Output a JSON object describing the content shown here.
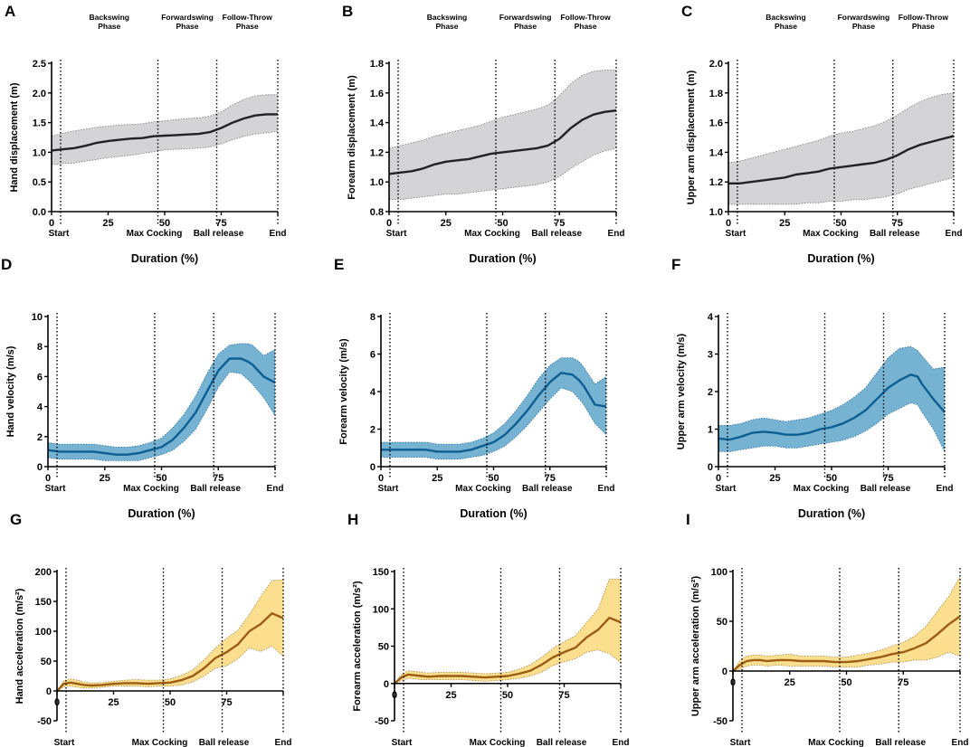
{
  "colors": {
    "gray_band": "#d4d4d6",
    "gray_line": "#222222",
    "blue_band": "#76b3d3",
    "blue_line": "#0d5e91",
    "yellow_band": "#fbdf8f",
    "yellow_line": "#9a5d13"
  },
  "phases": [
    "Backswing Phase",
    "Forwardswing Phase",
    "Follow-Throw Phase"
  ],
  "events": {
    "start": "Start",
    "max_cocking": "Max Cocking",
    "ball_release": "Ball release",
    "end": "End"
  },
  "chart_data": [
    {
      "id": "A",
      "label": "A",
      "type": "line",
      "title": "",
      "ylabel": "Hand displacement (m)",
      "xlabel": "Duration (%)",
      "xlim": [
        0,
        100
      ],
      "ylim": [
        0,
        2.5
      ],
      "xticks": [
        "0",
        "25",
        "50",
        "75",
        "100"
      ],
      "yticks": [
        "0.0",
        "0.5",
        "1.0",
        "1.5",
        "2.0",
        "2.5"
      ],
      "phase_labels": true,
      "event_lines": [
        4,
        47,
        73,
        100
      ],
      "style": "gray",
      "x": [
        0,
        5,
        10,
        15,
        20,
        25,
        30,
        35,
        40,
        45,
        50,
        55,
        60,
        65,
        70,
        75,
        80,
        85,
        90,
        95,
        100
      ],
      "mean": [
        1.03,
        1.05,
        1.07,
        1.11,
        1.16,
        1.19,
        1.21,
        1.23,
        1.24,
        1.27,
        1.28,
        1.29,
        1.3,
        1.31,
        1.34,
        1.41,
        1.5,
        1.57,
        1.62,
        1.64,
        1.64
      ],
      "upper": [
        1.27,
        1.32,
        1.36,
        1.39,
        1.42,
        1.44,
        1.46,
        1.47,
        1.48,
        1.51,
        1.53,
        1.55,
        1.57,
        1.58,
        1.61,
        1.68,
        1.8,
        1.89,
        1.95,
        1.97,
        1.97
      ],
      "lower": [
        0.79,
        0.81,
        0.82,
        0.85,
        0.88,
        0.91,
        0.93,
        0.95,
        0.98,
        1.01,
        1.04,
        1.05,
        1.06,
        1.07,
        1.09,
        1.14,
        1.21,
        1.27,
        1.31,
        1.33,
        1.35
      ]
    },
    {
      "id": "B",
      "label": "B",
      "type": "line",
      "title": "",
      "ylabel": "Forearm displacement (m)",
      "xlabel": "Duration (%)",
      "xlim": [
        0,
        100
      ],
      "ylim": [
        0.8,
        1.9
      ],
      "xticks": [
        "0",
        "25",
        "50",
        "75",
        "100"
      ],
      "yticks": [
        "0.8",
        "1.0",
        "1.2",
        "1.4",
        "1.6",
        "1.8"
      ],
      "phase_labels": true,
      "event_lines": [
        4,
        47,
        73,
        100
      ],
      "style": "gray",
      "x": [
        0,
        5,
        10,
        15,
        20,
        25,
        30,
        35,
        40,
        45,
        50,
        55,
        60,
        65,
        70,
        75,
        80,
        85,
        90,
        95,
        100
      ],
      "mean": [
        1.08,
        1.09,
        1.1,
        1.12,
        1.15,
        1.17,
        1.18,
        1.19,
        1.21,
        1.23,
        1.24,
        1.25,
        1.26,
        1.27,
        1.29,
        1.34,
        1.42,
        1.48,
        1.52,
        1.54,
        1.55
      ],
      "upper": [
        1.27,
        1.29,
        1.31,
        1.33,
        1.36,
        1.38,
        1.4,
        1.42,
        1.44,
        1.47,
        1.5,
        1.52,
        1.54,
        1.56,
        1.59,
        1.66,
        1.75,
        1.81,
        1.84,
        1.85,
        1.85
      ],
      "lower": [
        0.89,
        0.89,
        0.9,
        0.91,
        0.92,
        0.93,
        0.93,
        0.94,
        0.95,
        0.96,
        0.97,
        0.98,
        0.99,
        1.0,
        1.02,
        1.06,
        1.12,
        1.17,
        1.22,
        1.25,
        1.27
      ]
    },
    {
      "id": "C",
      "label": "C",
      "type": "line",
      "title": "",
      "ylabel": "Upper arm displacement (m)",
      "xlabel": "Duration (%)",
      "xlim": [
        0,
        100
      ],
      "ylim": [
        1.0,
        2.0
      ],
      "xticks": [
        "0",
        "25",
        "50",
        "75",
        "100"
      ],
      "yticks": [
        "1.0",
        "1.2",
        "1.4",
        "1.6",
        "1.8",
        "2.0"
      ],
      "phase_labels": true,
      "event_lines": [
        4,
        47,
        73,
        100
      ],
      "style": "gray",
      "x": [
        0,
        5,
        10,
        15,
        20,
        25,
        30,
        35,
        40,
        45,
        50,
        55,
        60,
        65,
        70,
        75,
        80,
        85,
        90,
        95,
        100
      ],
      "mean": [
        1.19,
        1.19,
        1.2,
        1.21,
        1.22,
        1.23,
        1.25,
        1.26,
        1.27,
        1.29,
        1.3,
        1.31,
        1.32,
        1.33,
        1.35,
        1.38,
        1.42,
        1.45,
        1.47,
        1.49,
        1.51
      ],
      "upper": [
        1.33,
        1.34,
        1.36,
        1.38,
        1.4,
        1.42,
        1.44,
        1.46,
        1.48,
        1.51,
        1.53,
        1.54,
        1.56,
        1.58,
        1.61,
        1.65,
        1.7,
        1.74,
        1.77,
        1.79,
        1.8
      ],
      "lower": [
        1.05,
        1.05,
        1.05,
        1.05,
        1.05,
        1.05,
        1.05,
        1.06,
        1.06,
        1.07,
        1.07,
        1.08,
        1.08,
        1.09,
        1.1,
        1.12,
        1.15,
        1.17,
        1.19,
        1.21,
        1.23
      ]
    },
    {
      "id": "D",
      "label": "D",
      "type": "line",
      "title": "",
      "ylabel": "Hand velocity (m/s)",
      "xlabel": "Duration (%)",
      "xlim": [
        0,
        100
      ],
      "ylim": [
        0,
        10
      ],
      "xticks": [
        "0",
        "25",
        "50",
        "75",
        "100"
      ],
      "yticks": [
        "0",
        "2",
        "4",
        "6",
        "8",
        "10"
      ],
      "phase_labels": false,
      "event_lines": [
        4,
        47,
        73,
        100
      ],
      "style": "blue",
      "x": [
        0,
        5,
        10,
        15,
        20,
        25,
        30,
        35,
        40,
        45,
        50,
        55,
        60,
        65,
        70,
        75,
        80,
        85,
        88,
        90,
        95,
        100
      ],
      "mean": [
        1.1,
        1.0,
        1.0,
        1.0,
        1.0,
        0.9,
        0.8,
        0.8,
        0.9,
        1.1,
        1.3,
        1.8,
        2.6,
        3.6,
        5.0,
        6.4,
        7.2,
        7.2,
        7.0,
        6.8,
        6.0,
        5.6
      ],
      "upper": [
        1.6,
        1.5,
        1.5,
        1.5,
        1.5,
        1.4,
        1.3,
        1.3,
        1.4,
        1.6,
        1.9,
        2.6,
        3.5,
        4.7,
        6.2,
        7.5,
        8.1,
        8.2,
        8.2,
        8.1,
        7.4,
        7.8
      ],
      "lower": [
        0.6,
        0.5,
        0.5,
        0.5,
        0.5,
        0.4,
        0.4,
        0.4,
        0.4,
        0.6,
        0.8,
        1.1,
        1.7,
        2.5,
        3.8,
        5.3,
        6.3,
        6.2,
        5.8,
        5.5,
        4.6,
        3.4
      ]
    },
    {
      "id": "E",
      "label": "E",
      "type": "line",
      "title": "",
      "ylabel": "Forearm velocity (m/s)",
      "xlabel": "Duration (%)",
      "xlim": [
        0,
        100
      ],
      "ylim": [
        0,
        8
      ],
      "xticks": [
        "0",
        "25",
        "50",
        "75",
        "100"
      ],
      "yticks": [
        "0",
        "2",
        "4",
        "6",
        "8"
      ],
      "phase_labels": false,
      "event_lines": [
        4,
        47,
        73,
        100
      ],
      "style": "blue",
      "x": [
        0,
        5,
        10,
        15,
        20,
        25,
        30,
        35,
        40,
        45,
        50,
        55,
        60,
        65,
        70,
        75,
        80,
        85,
        88,
        90,
        95,
        100
      ],
      "mean": [
        0.9,
        0.9,
        0.9,
        0.9,
        0.9,
        0.8,
        0.8,
        0.8,
        0.9,
        1.1,
        1.3,
        1.7,
        2.3,
        3.0,
        3.8,
        4.5,
        5.0,
        4.9,
        4.6,
        4.3,
        3.3,
        3.2
      ],
      "upper": [
        1.3,
        1.3,
        1.3,
        1.3,
        1.3,
        1.2,
        1.2,
        1.2,
        1.3,
        1.5,
        1.8,
        2.3,
        3.0,
        3.8,
        4.7,
        5.4,
        5.8,
        5.8,
        5.6,
        5.3,
        4.4,
        4.8
      ],
      "lower": [
        0.5,
        0.5,
        0.5,
        0.5,
        0.5,
        0.4,
        0.4,
        0.4,
        0.5,
        0.6,
        0.8,
        1.1,
        1.6,
        2.2,
        2.9,
        3.6,
        4.2,
        4.0,
        3.6,
        3.3,
        2.3,
        1.7
      ]
    },
    {
      "id": "F",
      "label": "F",
      "type": "line",
      "title": "",
      "ylabel": "Upper arm velocity (m/s)",
      "xlabel": "Duration (%)",
      "xlim": [
        0,
        100
      ],
      "ylim": [
        0,
        4
      ],
      "xticks": [
        "0",
        "25",
        "50",
        "75",
        "100"
      ],
      "yticks": [
        "0",
        "1",
        "2",
        "3",
        "4"
      ],
      "phase_labels": false,
      "event_lines": [
        4,
        47,
        73,
        100
      ],
      "style": "blue",
      "x": [
        0,
        5,
        10,
        15,
        20,
        25,
        30,
        35,
        40,
        45,
        50,
        55,
        60,
        65,
        70,
        75,
        80,
        85,
        88,
        90,
        95,
        100
      ],
      "mean": [
        0.75,
        0.72,
        0.8,
        0.9,
        0.93,
        0.9,
        0.85,
        0.85,
        0.9,
        1.0,
        1.05,
        1.15,
        1.3,
        1.5,
        1.8,
        2.1,
        2.3,
        2.45,
        2.4,
        2.2,
        1.8,
        1.45
      ],
      "upper": [
        1.1,
        1.1,
        1.15,
        1.25,
        1.3,
        1.25,
        1.2,
        1.25,
        1.3,
        1.4,
        1.5,
        1.65,
        1.85,
        2.1,
        2.5,
        2.9,
        3.15,
        3.2,
        3.1,
        2.95,
        2.6,
        2.65
      ],
      "lower": [
        0.4,
        0.4,
        0.45,
        0.5,
        0.55,
        0.55,
        0.5,
        0.5,
        0.55,
        0.6,
        0.65,
        0.7,
        0.8,
        0.95,
        1.15,
        1.4,
        1.55,
        1.7,
        1.65,
        1.45,
        1.0,
        0.4
      ]
    },
    {
      "id": "G",
      "label": "G",
      "type": "line",
      "title": "",
      "ylabel": "Hand acceleration (m/s²)",
      "xlabel": "Duration (%)",
      "xlim": [
        0,
        100
      ],
      "ylim": [
        -50,
        200
      ],
      "xticks": [
        "0",
        "25",
        "50",
        "75",
        "100"
      ],
      "yticks": [
        "-50",
        "0",
        "50",
        "100",
        "150",
        "200"
      ],
      "phase_labels": false,
      "event_lines": [
        4,
        47,
        73,
        100
      ],
      "style": "yellow",
      "x": [
        0,
        3,
        6,
        9,
        12,
        15,
        20,
        25,
        30,
        35,
        40,
        45,
        50,
        55,
        60,
        65,
        70,
        75,
        80,
        85,
        90,
        95,
        100
      ],
      "mean": [
        0,
        12,
        14,
        12,
        10,
        9,
        10,
        12,
        13,
        13,
        12,
        13,
        14,
        18,
        25,
        38,
        55,
        65,
        78,
        100,
        112,
        130,
        122
      ],
      "upper": [
        0,
        17,
        20,
        18,
        15,
        13,
        14,
        16,
        18,
        19,
        18,
        18,
        20,
        26,
        35,
        52,
        72,
        88,
        102,
        128,
        158,
        185,
        186
      ],
      "lower": [
        0,
        7,
        8,
        6,
        5,
        5,
        6,
        8,
        8,
        8,
        7,
        8,
        8,
        10,
        15,
        25,
        38,
        42,
        54,
        72,
        66,
        75,
        58
      ]
    },
    {
      "id": "H",
      "label": "H",
      "type": "line",
      "title": "",
      "ylabel": "Forearm acceleration (m/s²)",
      "xlabel": "Duration (%)",
      "xlim": [
        0,
        100
      ],
      "ylim": [
        -50,
        150
      ],
      "xticks": [
        "0",
        "25",
        "50",
        "75",
        "100"
      ],
      "yticks": [
        "-50",
        "0",
        "50",
        "100",
        "150"
      ],
      "phase_labels": false,
      "event_lines": [
        4,
        47,
        73,
        100
      ],
      "style": "yellow",
      "x": [
        0,
        3,
        6,
        9,
        12,
        15,
        20,
        25,
        30,
        35,
        40,
        45,
        50,
        55,
        60,
        65,
        70,
        75,
        80,
        85,
        90,
        95,
        100
      ],
      "mean": [
        0,
        8,
        12,
        11,
        10,
        9,
        10,
        10,
        10,
        9,
        8,
        9,
        10,
        13,
        17,
        25,
        35,
        42,
        48,
        62,
        72,
        88,
        82
      ],
      "upper": [
        0,
        12,
        17,
        16,
        15,
        14,
        15,
        15,
        15,
        14,
        13,
        14,
        15,
        19,
        25,
        35,
        47,
        56,
        64,
        82,
        100,
        140,
        140
      ],
      "lower": [
        0,
        4,
        7,
        6,
        5,
        5,
        5,
        5,
        5,
        4,
        3,
        4,
        5,
        7,
        10,
        15,
        24,
        29,
        33,
        42,
        45,
        40,
        28
      ]
    },
    {
      "id": "I",
      "label": "I",
      "type": "line",
      "title": "",
      "ylabel": "Upper arm acceleration (m/s²)",
      "xlabel": "Duration (%)",
      "xlim": [
        0,
        100
      ],
      "ylim": [
        -50,
        100
      ],
      "xticks": [
        "0",
        "25",
        "50",
        "75",
        "100"
      ],
      "yticks": [
        "-50",
        "0",
        "50",
        "100"
      ],
      "phase_labels": false,
      "event_lines": [
        4,
        47,
        73,
        100
      ],
      "style": "yellow",
      "x": [
        0,
        3,
        6,
        9,
        12,
        15,
        20,
        25,
        30,
        35,
        40,
        45,
        50,
        55,
        60,
        65,
        70,
        75,
        80,
        85,
        90,
        95,
        100
      ],
      "mean": [
        0,
        6,
        10,
        11,
        11,
        10,
        11,
        11,
        10,
        10,
        10,
        9,
        9,
        10,
        12,
        14,
        17,
        19,
        23,
        28,
        37,
        47,
        55
      ],
      "upper": [
        0,
        10,
        15,
        16,
        16,
        15,
        16,
        17,
        15,
        15,
        15,
        14,
        14,
        16,
        18,
        21,
        25,
        29,
        35,
        45,
        60,
        75,
        95
      ],
      "lower": [
        0,
        2,
        5,
        6,
        6,
        5,
        6,
        5,
        5,
        5,
        5,
        4,
        4,
        4,
        6,
        7,
        9,
        9,
        11,
        11,
        14,
        19,
        15
      ]
    }
  ]
}
